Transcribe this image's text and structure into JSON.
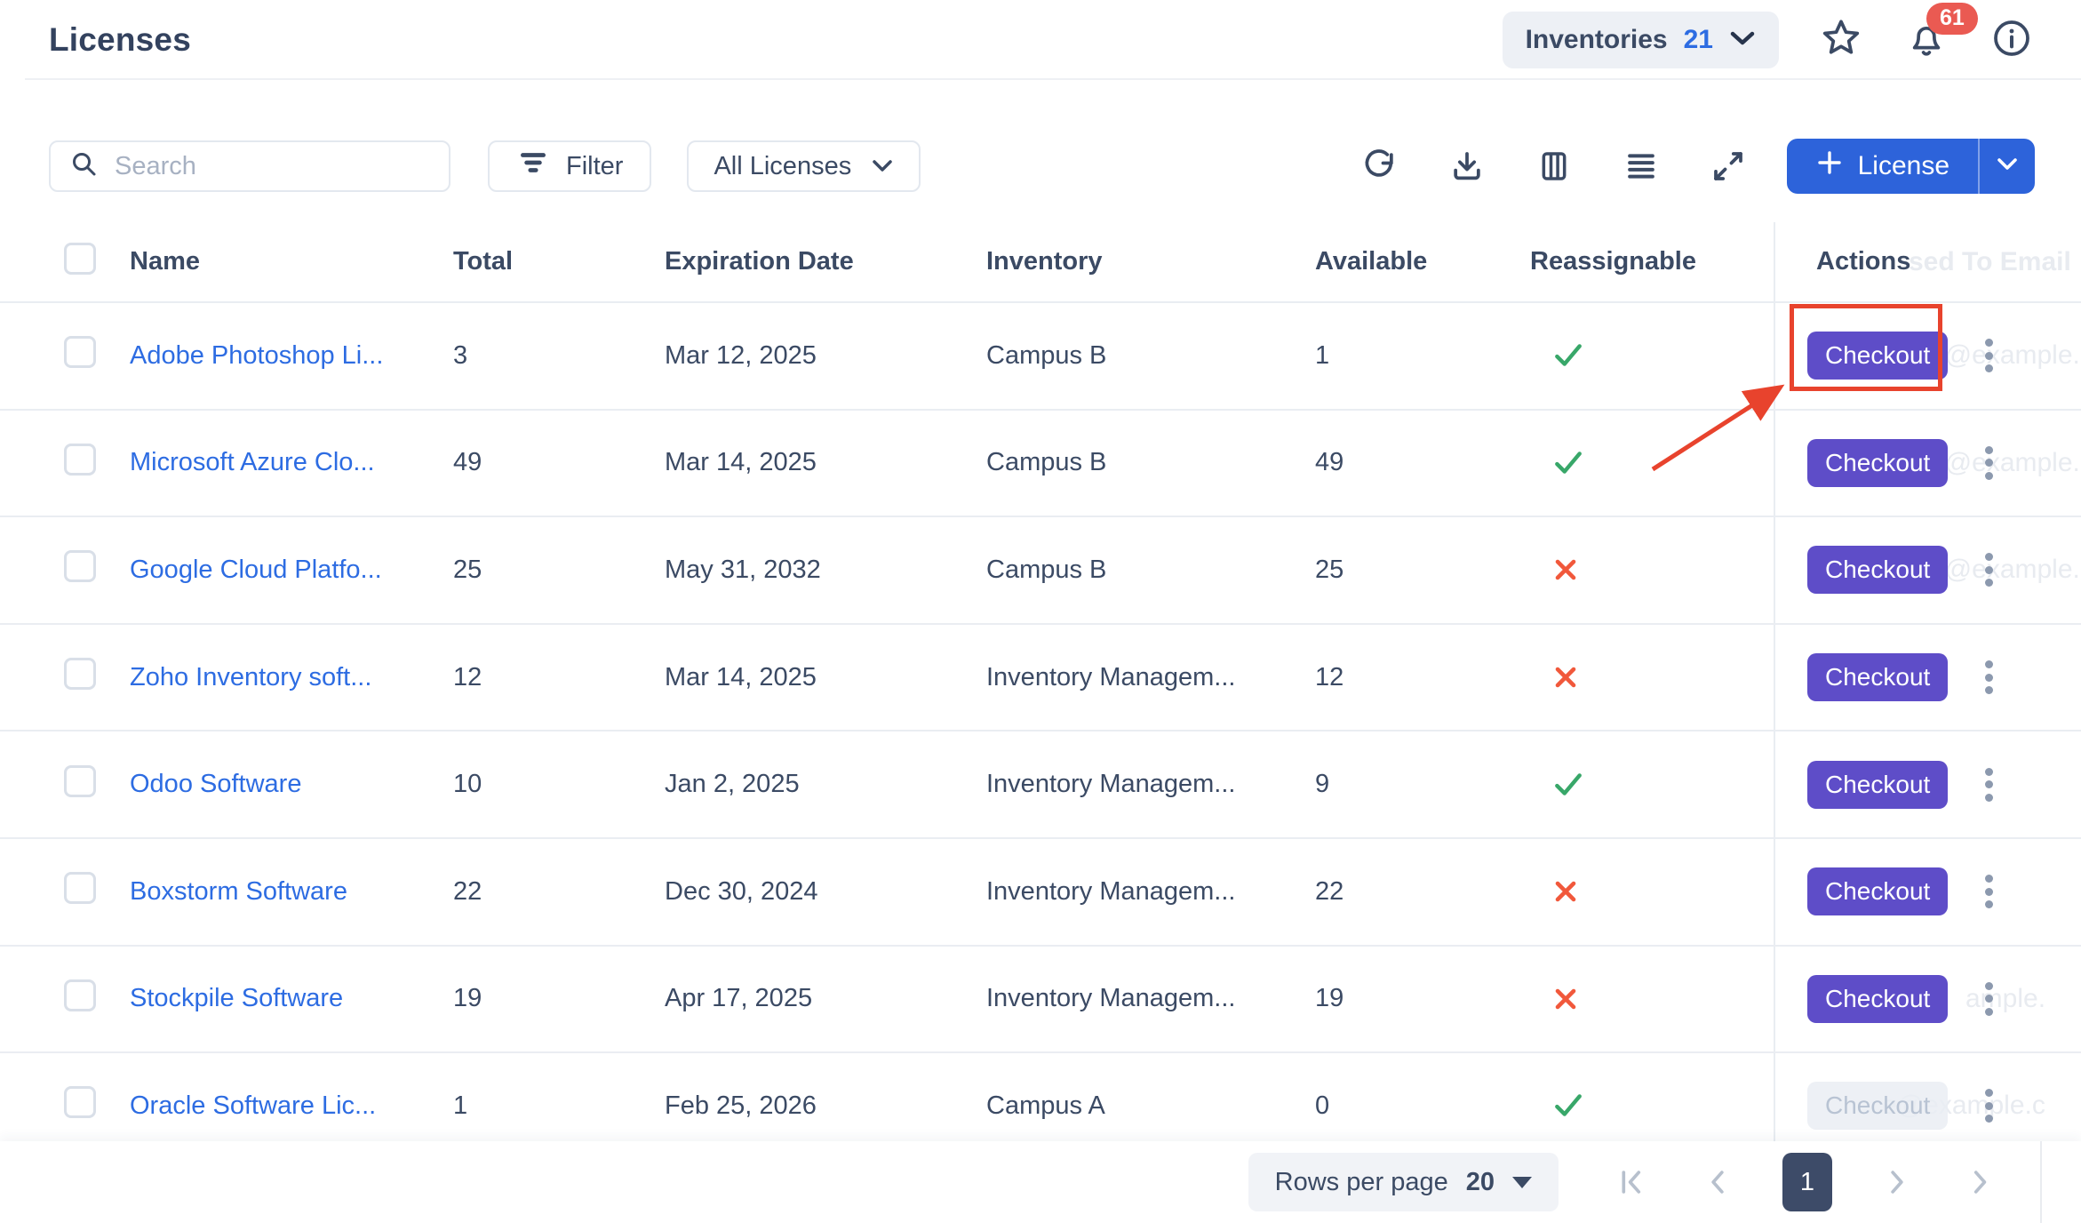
{
  "header": {
    "title": "Licenses",
    "inventories_label": "Inventories",
    "inventories_count": "21",
    "notification_count": "61"
  },
  "toolbar": {
    "search_placeholder": "Search",
    "filter_label": "Filter",
    "scope_label": "All Licenses",
    "add_label": "License"
  },
  "table": {
    "columns": [
      "Name",
      "Total",
      "Expiration Date",
      "Inventory",
      "Available",
      "Reassignable",
      "Actions"
    ],
    "hidden_column_ghost": "sed To Email",
    "checkout_label": "Checkout",
    "rows": [
      {
        "name": "Adobe Photoshop Li...",
        "total": "3",
        "expiration": "Mar 12, 2025",
        "inventory": "Campus B",
        "available": "1",
        "reassignable": true,
        "checkout_enabled": true,
        "ghost": "e@example.",
        "annotated": true
      },
      {
        "name": "Microsoft Azure Clo...",
        "total": "49",
        "expiration": "Mar 14, 2025",
        "inventory": "Campus B",
        "available": "49",
        "reassignable": true,
        "checkout_enabled": true,
        "ghost": "e@example.",
        "annotated": false
      },
      {
        "name": "Google Cloud Platfo...",
        "total": "25",
        "expiration": "May 31, 2032",
        "inventory": "Campus B",
        "available": "25",
        "reassignable": false,
        "checkout_enabled": true,
        "ghost": "e@example.",
        "annotated": false
      },
      {
        "name": "Zoho Inventory soft...",
        "total": "12",
        "expiration": "Mar 14, 2025",
        "inventory": "Inventory Managem...",
        "available": "12",
        "reassignable": false,
        "checkout_enabled": true,
        "ghost": "",
        "annotated": false
      },
      {
        "name": "Odoo Software",
        "total": "10",
        "expiration": "Jan 2, 2025",
        "inventory": "Inventory Managem...",
        "available": "9",
        "reassignable": true,
        "checkout_enabled": true,
        "ghost": "",
        "annotated": false
      },
      {
        "name": "Boxstorm Software",
        "total": "22",
        "expiration": "Dec 30, 2024",
        "inventory": "Inventory Managem...",
        "available": "22",
        "reassignable": false,
        "checkout_enabled": true,
        "ghost": "",
        "annotated": false
      },
      {
        "name": "Stockpile Software",
        "total": "19",
        "expiration": "Apr 17, 2025",
        "inventory": "Inventory Managem...",
        "available": "19",
        "reassignable": false,
        "checkout_enabled": true,
        "ghost": "ample.",
        "annotated": false
      },
      {
        "name": "Oracle Software Lic...",
        "total": "1",
        "expiration": "Feb 25, 2026",
        "inventory": "Campus A",
        "available": "0",
        "reassignable": true,
        "checkout_enabled": false,
        "ghost": "e@example.c",
        "annotated": false
      }
    ]
  },
  "footer": {
    "rows_per_page_label": "Rows per page",
    "rows_per_page_value": "20",
    "current_page": "1"
  },
  "colors": {
    "accent_blue": "#2d63da",
    "link_blue": "#2d6ce2",
    "checkout_purple": "#5e4dc8",
    "annotation_red": "#e8432d",
    "badge_red": "#ea5a52",
    "check_green": "#38a769",
    "cross_red": "#f1583b"
  }
}
